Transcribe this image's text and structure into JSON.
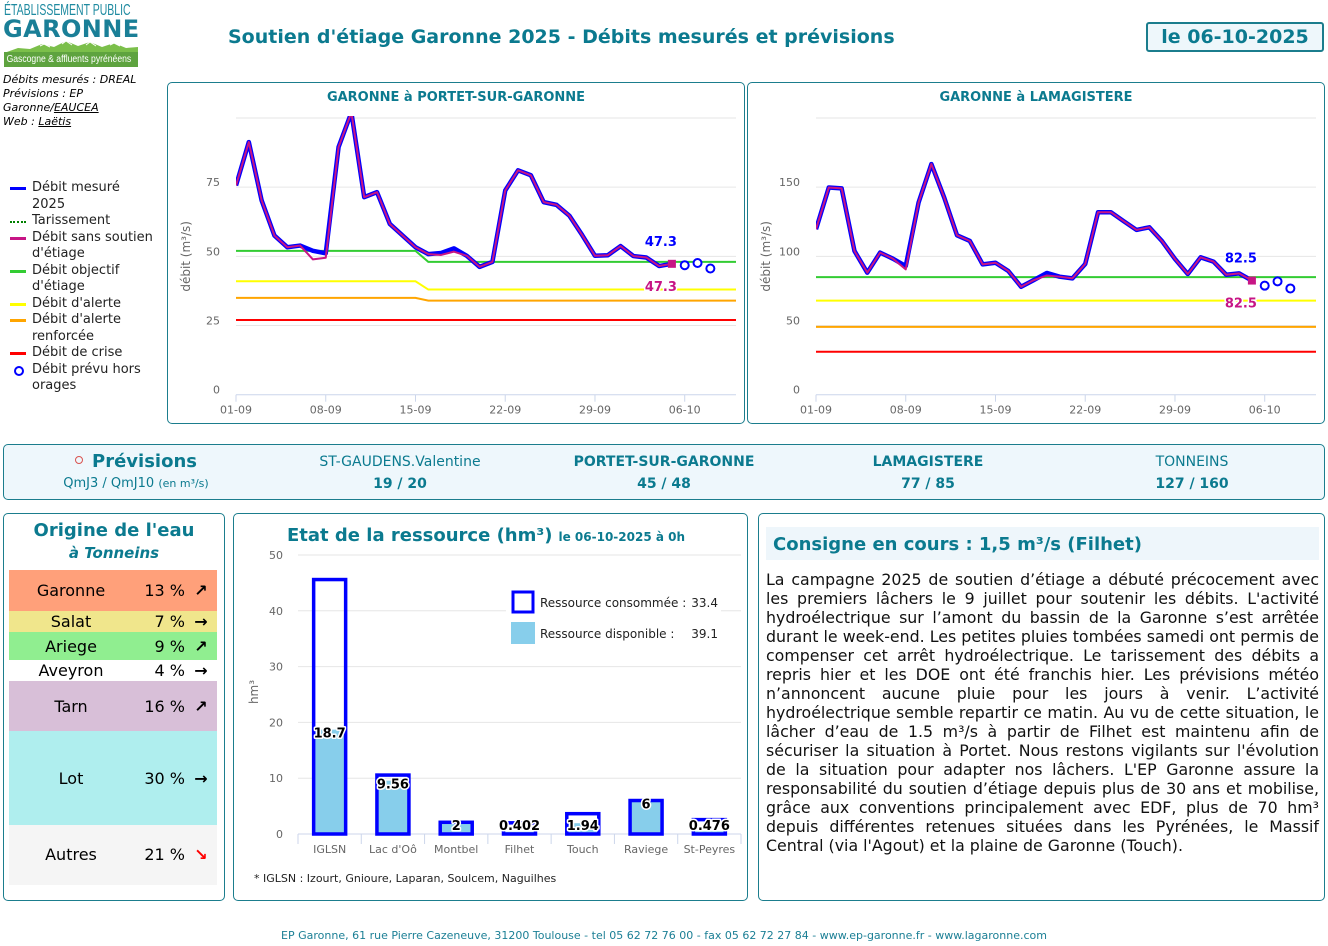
{
  "logo": {
    "line1": "ÉTABLISSEMENT PUBLIC",
    "name": "GARONNE",
    "tagline": "Gascogne & affluents pyrénéens"
  },
  "credits": {
    "measured": "Débits mesurés : DREAL",
    "forecast_prefix": "Prévisions : EP Garonne/",
    "forecast_link": "EAUCEA",
    "web_prefix": "Web : ",
    "web_link": "Laëtis"
  },
  "header": {
    "title": "Soutien d'étiage Garonne 2025 - Débits mesurés et prévisions",
    "date": "le 06-10-2025"
  },
  "legend": {
    "items": [
      {
        "label": "Débit mesuré 2025",
        "color": "#0000ff",
        "style": "line"
      },
      {
        "label": "Tarissement",
        "color": "#008000",
        "style": "dotted"
      },
      {
        "label": "Débit sans soutien d'étiage",
        "color": "#c71585",
        "style": "line"
      },
      {
        "label": "Débit objectif d'étiage",
        "color": "#33cc33",
        "style": "line"
      },
      {
        "label": "Débit d'alerte",
        "color": "#ffff00",
        "style": "line"
      },
      {
        "label": "Débit d'alerte renforcée",
        "color": "#ffa500",
        "style": "line"
      },
      {
        "label": "Débit de crise",
        "color": "#ff0000",
        "style": "line"
      },
      {
        "label": "Débit prévu hors orages",
        "color": "#0000ff",
        "style": "circle"
      }
    ]
  },
  "previsions": {
    "title": "Prévisions",
    "unit_main": "QmJ3 / QmJ10",
    "unit_small": "(en m³/s)",
    "stations": [
      {
        "name": "ST-GAUDENS.Valentine",
        "value": "19 / 20",
        "bold": false
      },
      {
        "name": "PORTET-SUR-GARONNE",
        "value": "45 / 48",
        "bold": true
      },
      {
        "name": "LAMAGISTERE",
        "value": "77 / 85",
        "bold": true
      },
      {
        "name": "TONNEINS",
        "value": "127 / 160",
        "bold": false
      }
    ]
  },
  "origine": {
    "title": "Origine de l'eau",
    "subtitle": "à Tonneins",
    "rows": [
      {
        "name": "Garonne",
        "pct": "13 %",
        "pct_value": 13,
        "trend": "up",
        "bg": "#ffa07a"
      },
      {
        "name": "Salat",
        "pct": "7 %",
        "pct_value": 7,
        "trend": "flat",
        "bg": "#f0e68c"
      },
      {
        "name": "Ariege",
        "pct": "9 %",
        "pct_value": 9,
        "trend": "up",
        "bg": "#90ee90"
      },
      {
        "name": "Aveyron",
        "pct": "4 %",
        "pct_value": 4,
        "trend": "flat",
        "bg": "#ffffff"
      },
      {
        "name": "Tarn",
        "pct": "16 %",
        "pct_value": 16,
        "trend": "up",
        "bg": "#d8bfd8"
      },
      {
        "name": "Lot",
        "pct": "30 %",
        "pct_value": 30,
        "trend": "flat",
        "bg": "#afeeee"
      },
      {
        "name": "Autres",
        "pct": "21 %",
        "pct_value": 21,
        "trend": "down",
        "bg": "#f5f5f5"
      }
    ]
  },
  "consigne": {
    "title": "Consigne en cours : 1,5 m³/s (Filhet)",
    "text": "La campagne 2025 de soutien d’étiage a débuté précocement avec les premiers lâchers le 9 juillet pour soutenir les débits. L'activité hydroélectrique sur l’amont du bassin de la Garonne s’est arrêtée durant le week-end. Les petites pluies tombées samedi ont permis de compenser cet arrêt hydroélectrique. Le tarissement des débits a repris hier et les DOE ont été franchis hier. Les prévisions météo n’annoncent aucune pluie pour les jours à venir. L’activité hydroélectrique semble repartir ce matin. Au vu de cette situation, le lâcher d’eau de 1.5 m³/s à partir de Filhet est maintenu afin de sécuriser la situation à Portet. Nous restons vigilants sur l'évolution de la situation pour adapter nos lâchers. L'EP Garonne assure la responsabilité du soutien d’étiage depuis plus de 30 ans et mobilise, grâce aux conventions principalement avec EDF, plus de 70 hm³ depuis différentes retenues situées dans les Pyrénées, le Massif Central (via l'Agout) et la plaine de Garonne (Touch)."
  },
  "footer": {
    "text": "EP Garonne, 61 rue Pierre Cazeneuve, 31200 Toulouse - tel 05 62 72 76 00 - fax 05 62 72 27 84 - www.ep-garonne.fr - www.lagaronne.com"
  },
  "chart_data": [
    {
      "type": "line",
      "title": "GARONNE à PORTET-SUR-GARONNE",
      "xlabel": "",
      "ylabel": "débit (m³/s)",
      "ylim": [
        0,
        100
      ],
      "yticks": [
        0,
        25,
        50,
        75
      ],
      "xlim": [
        "01-09",
        "10-10"
      ],
      "xticks": [
        "01-09",
        "08-09",
        "15-09",
        "22-09",
        "29-09",
        "06-10"
      ],
      "grid": true,
      "dates": [
        "01-09",
        "02-09",
        "03-09",
        "04-09",
        "05-09",
        "06-09",
        "07-09",
        "08-09",
        "09-09",
        "10-09",
        "11-09",
        "12-09",
        "13-09",
        "14-09",
        "15-09",
        "16-09",
        "17-09",
        "18-09",
        "19-09",
        "20-09",
        "21-09",
        "22-09",
        "23-09",
        "24-09",
        "25-09",
        "26-09",
        "27-09",
        "28-09",
        "29-09",
        "30-09",
        "01-10",
        "02-10",
        "03-10",
        "04-10",
        "05-10"
      ],
      "series": [
        {
          "legend_index": 0,
          "values": [
            75.6,
            91.3,
            70.2,
            57.5,
            53.3,
            53.9,
            52.0,
            51.1,
            89.5,
            102,
            71.4,
            73.2,
            61.7,
            57.5,
            53.3,
            50.8,
            51.2,
            52.9,
            50.2,
            46.2,
            48.0,
            73.8,
            81.1,
            79.3,
            69.6,
            68.6,
            64.7,
            57.7,
            50.2,
            50.4,
            53.7,
            50.1,
            49.6,
            46.5,
            47.3
          ]
        },
        {
          "legend_index": 2,
          "values": [
            75.6,
            91.3,
            70.2,
            57.5,
            53.3,
            53.9,
            48.9,
            49.5,
            89.5,
            102,
            71.4,
            73.2,
            61.7,
            57.5,
            53.3,
            50.8,
            50.5,
            51.7,
            50.2,
            46.2,
            48.0,
            73.8,
            81.1,
            79.3,
            69.6,
            68.6,
            64.7,
            57.7,
            50.2,
            50.4,
            53.7,
            50.1,
            49.6,
            46.5,
            47.3
          ]
        }
      ],
      "thresholds": [
        {
          "legend_index": 3,
          "points": [
            [
              "01-09",
              52
            ],
            [
              "15-09",
              52
            ],
            [
              "16-09",
              48
            ],
            [
              "10-10",
              48
            ]
          ]
        },
        {
          "legend_index": 4,
          "points": [
            [
              "01-09",
              41
            ],
            [
              "15-09",
              41
            ],
            [
              "16-09",
              38
            ],
            [
              "10-10",
              38
            ]
          ]
        },
        {
          "legend_index": 5,
          "points": [
            [
              "01-09",
              35
            ],
            [
              "15-09",
              35
            ],
            [
              "16-09",
              34
            ],
            [
              "10-10",
              34
            ]
          ]
        },
        {
          "legend_index": 6,
          "points": [
            [
              "01-09",
              27
            ],
            [
              "10-10",
              27
            ]
          ]
        }
      ],
      "forecast": {
        "legend_index": 7,
        "dates": [
          "06-10",
          "07-10",
          "08-10"
        ],
        "values": [
          46.8,
          47.6,
          45.6
        ]
      },
      "last_labels": {
        "measured": "47.3",
        "natural": "47.3"
      }
    },
    {
      "type": "line",
      "title": "GARONNE à LAMAGISTERE",
      "xlabel": "",
      "ylabel": "débit (m³/s)",
      "ylim": [
        0,
        200
      ],
      "yticks": [
        0,
        50,
        100,
        150
      ],
      "xlim": [
        "01-09",
        "10-10"
      ],
      "xticks": [
        "01-09",
        "08-09",
        "15-09",
        "22-09",
        "29-09",
        "06-10"
      ],
      "grid": true,
      "dates": [
        "01-09",
        "02-09",
        "03-09",
        "04-09",
        "05-09",
        "06-09",
        "07-09",
        "08-09",
        "09-09",
        "10-09",
        "11-09",
        "12-09",
        "13-09",
        "14-09",
        "15-09",
        "16-09",
        "17-09",
        "18-09",
        "19-09",
        "20-09",
        "21-09",
        "22-09",
        "23-09",
        "24-09",
        "25-09",
        "26-09",
        "27-09",
        "28-09",
        "29-09",
        "30-09",
        "01-10",
        "02-10",
        "03-10",
        "04-10",
        "05-10"
      ],
      "series": [
        {
          "legend_index": 0,
          "values": [
            119.6,
            149.8,
            149.1,
            103.9,
            88.2,
            102.7,
            98.3,
            93.0,
            138.9,
            166.7,
            142.5,
            115.2,
            111.1,
            94.2,
            95.4,
            89.4,
            78.0,
            82.9,
            88.0,
            85.3,
            84.1,
            94.5,
            131.9,
            131.9,
            125.4,
            119.1,
            121.0,
            110.9,
            98.1,
            87.2,
            99.3,
            96.2,
            86.7,
            87.7,
            82.5
          ]
        },
        {
          "legend_index": 2,
          "values": [
            119.6,
            149.8,
            149.1,
            103.9,
            88.2,
            102.7,
            98.3,
            90.6,
            138.9,
            166.7,
            142.5,
            115.2,
            111.1,
            94.2,
            95.4,
            89.4,
            78.0,
            82.9,
            86.2,
            85.3,
            84.1,
            94.5,
            131.9,
            131.9,
            125.4,
            119.1,
            121.0,
            110.9,
            98.1,
            87.2,
            99.3,
            96.2,
            86.7,
            87.7,
            82.5
          ]
        }
      ],
      "thresholds": [
        {
          "legend_index": 3,
          "points": [
            [
              "01-09",
              85
            ],
            [
              "10-10",
              85
            ]
          ]
        },
        {
          "legend_index": 4,
          "points": [
            [
              "01-09",
              68
            ],
            [
              "10-10",
              68
            ]
          ]
        },
        {
          "legend_index": 5,
          "points": [
            [
              "01-09",
              49
            ],
            [
              "10-10",
              49
            ]
          ]
        },
        {
          "legend_index": 6,
          "points": [
            [
              "01-09",
              31
            ],
            [
              "10-10",
              31
            ]
          ]
        }
      ],
      "forecast": {
        "legend_index": 7,
        "dates": [
          "06-10",
          "07-10",
          "08-10"
        ],
        "values": [
          78.8,
          81.9,
          76.8
        ]
      },
      "last_labels": {
        "measured": "82.5",
        "natural": "82.5"
      }
    },
    {
      "type": "bar",
      "title": "Etat de la ressource (hm³)",
      "subtitle": "le 06-10-2025 à 0h",
      "xlabel": "",
      "ylabel": "hm³",
      "ylim": [
        0,
        50
      ],
      "yticks": [
        0,
        10,
        20,
        30,
        40,
        50
      ],
      "grid": true,
      "categories": [
        "IGLSN",
        "Lac d'Oô",
        "Montbel",
        "Filhet",
        "Touch",
        "Raviege",
        "St-Peyres"
      ],
      "series": [
        {
          "key": "disponible",
          "color": "#87ceeb",
          "values": [
            18.7,
            9.56,
            2,
            0.402,
            1.94,
            6,
            0.476
          ]
        },
        {
          "key": "consommee",
          "color": "#0000ff",
          "values": [
            26.9,
            1.0,
            0.1,
            1.6,
            1.7,
            0.0,
            2.1
          ]
        }
      ],
      "data_labels": [
        "18.7",
        "9.56",
        "2",
        "0.402",
        "1.94",
        "6",
        "0.476"
      ],
      "legend": [
        {
          "label": "Ressource consommée :",
          "total": "33.4"
        },
        {
          "label": "Ressource disponible :",
          "total": "39.1"
        }
      ],
      "footnote": "* IGLSN : Izourt, Gnioure, Laparan, Soulcem, Naguilhes"
    }
  ]
}
